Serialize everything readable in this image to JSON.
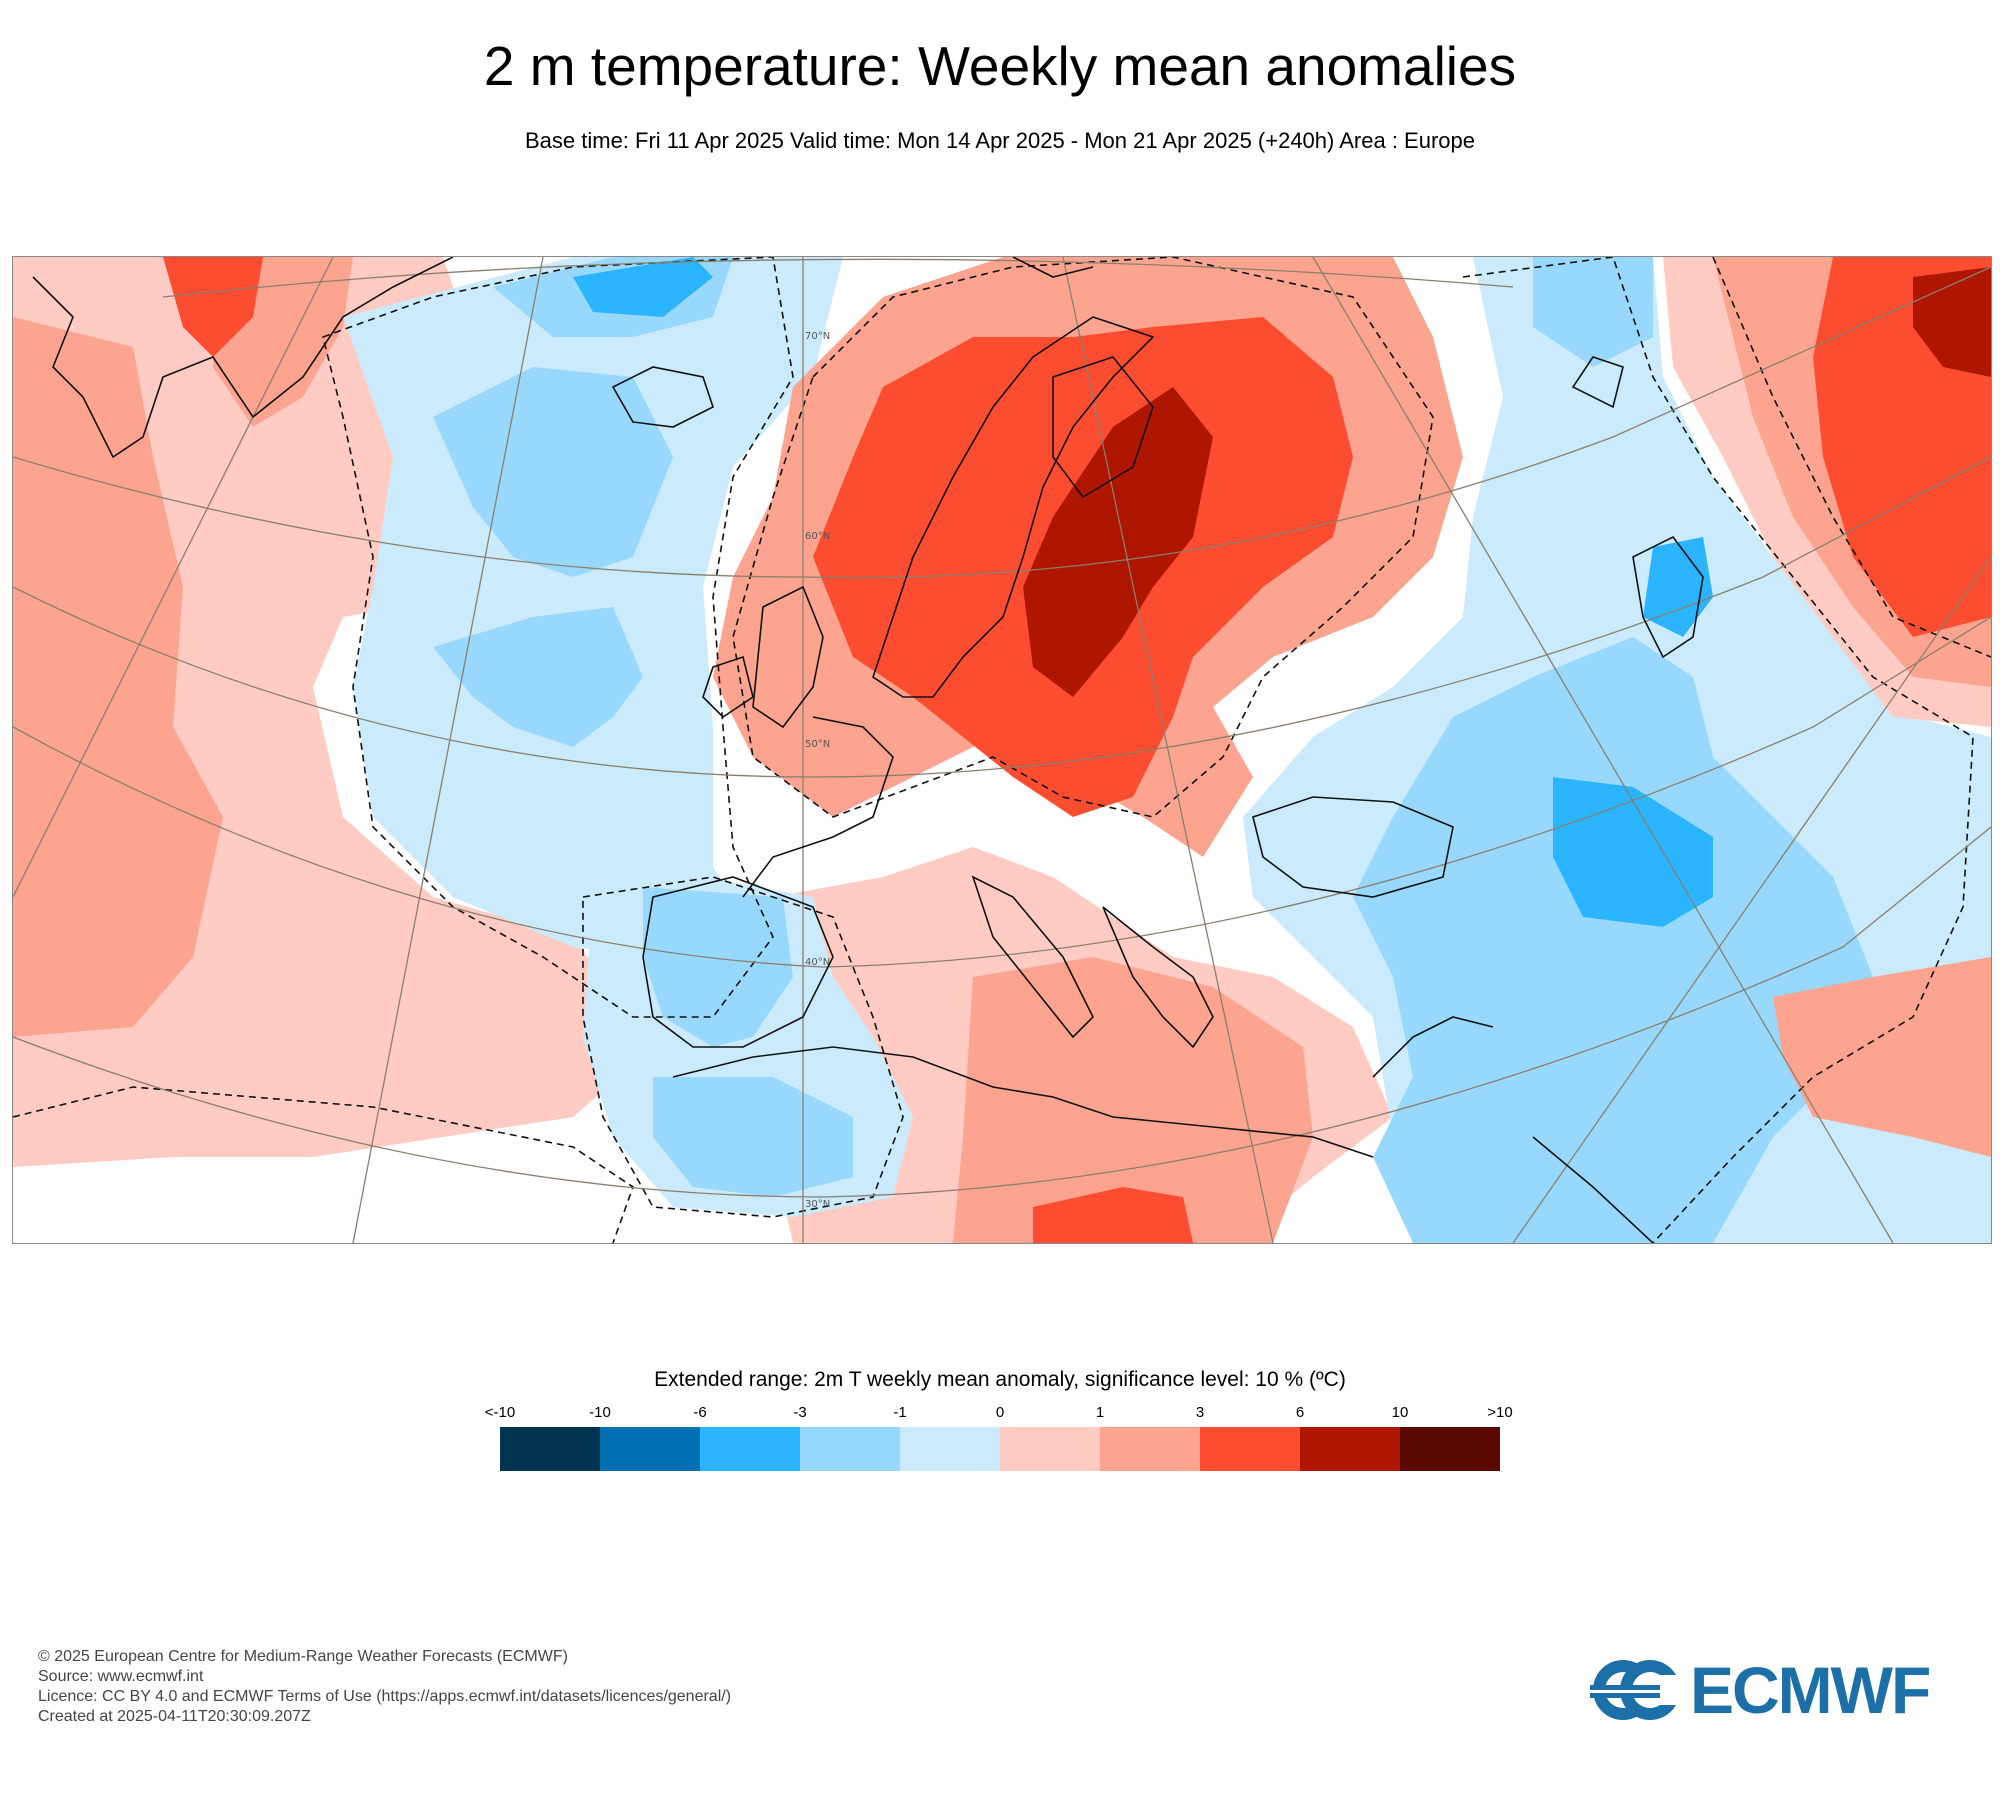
{
  "header": {
    "title": "2 m temperature: Weekly mean anomalies",
    "subtitle": "Base time: Fri 11 Apr 2025 Valid time: Mon 14 Apr 2025 - Mon 21 Apr 2025 (+240h) Area : Europe"
  },
  "map": {
    "area": "Europe",
    "graticule_labels": [
      "70°N",
      "60°N",
      "50°N",
      "40°N",
      "30°N"
    ]
  },
  "legend": {
    "title": "Extended range: 2m T weekly mean anomaly, significance level: 10 % (ºC)",
    "tick_labels": [
      "<-10",
      "-10",
      "-6",
      "-3",
      "-1",
      "0",
      "1",
      "3",
      "6",
      "10",
      ">10"
    ],
    "colors": [
      "#003451",
      "#0070b0",
      "#2bb4ff",
      "#98d8fc",
      "#cbeafc",
      "#ffcbc3",
      "#fca490",
      "#fc4d31",
      "#ae1600",
      "#5a0a00"
    ]
  },
  "footer": {
    "line1": "© 2025 European Centre for Medium-Range Weather Forecasts (ECMWF)",
    "line2": "Source: www.ecmwf.int",
    "line3": "Licence: CC BY 4.0 and ECMWF Terms of Use (https://apps.ecmwf.int/datasets/licences/general/)",
    "line4": "Created at 2025-04-11T20:30:09.207Z"
  },
  "logo": {
    "text": "ECMWF",
    "color": "#1d6fa8"
  }
}
